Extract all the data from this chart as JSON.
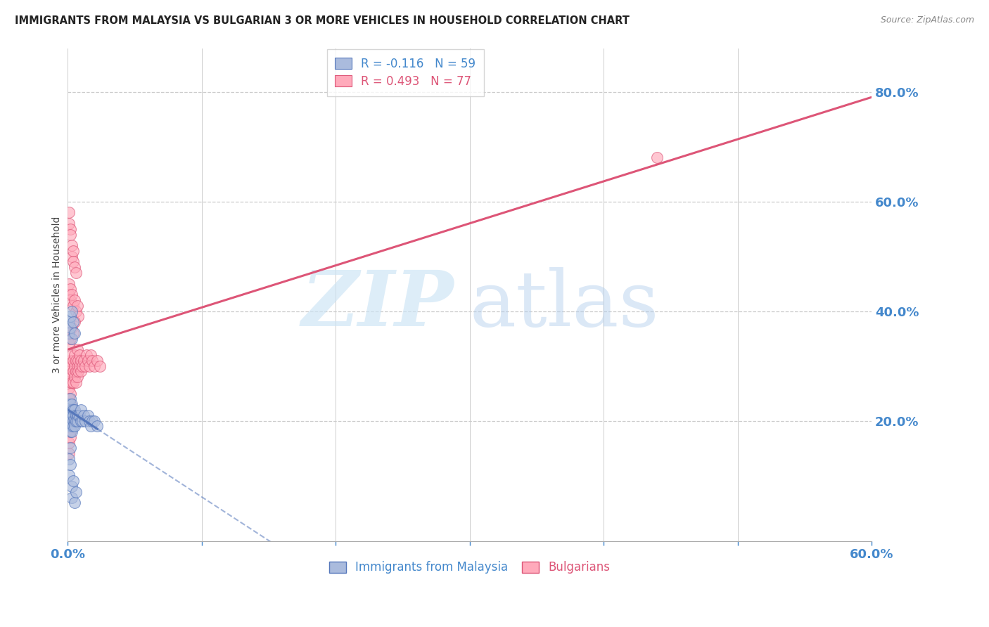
{
  "title": "IMMIGRANTS FROM MALAYSIA VS BULGARIAN 3 OR MORE VEHICLES IN HOUSEHOLD CORRELATION CHART",
  "source": "Source: ZipAtlas.com",
  "ylabel": "3 or more Vehicles in Household",
  "watermark_zip": "ZIP",
  "watermark_atlas": "atlas",
  "legend_malaysia": "Immigrants from Malaysia",
  "legend_bulgarians": "Bulgarians",
  "r_malaysia": -0.116,
  "n_malaysia": 59,
  "r_bulgarians": 0.493,
  "n_bulgarians": 77,
  "xlim": [
    0.0,
    0.6
  ],
  "ylim": [
    -0.02,
    0.88
  ],
  "x_tick_positions": [
    0.0,
    0.1,
    0.2,
    0.3,
    0.4,
    0.5,
    0.6
  ],
  "x_tick_labels": [
    "0.0%",
    "",
    "",
    "",
    "",
    "",
    "60.0%"
  ],
  "y_tick_positions": [
    0.0,
    0.2,
    0.4,
    0.6,
    0.8
  ],
  "y_tick_labels": [
    "",
    "20.0%",
    "40.0%",
    "60.0%",
    "80.0%"
  ],
  "grid_color": "#cccccc",
  "background_color": "#ffffff",
  "blue_fill": "#aabbdd",
  "blue_edge": "#5577bb",
  "pink_fill": "#ffaabb",
  "pink_edge": "#dd5577",
  "blue_line": "#5577bb",
  "pink_line": "#dd5577",
  "title_color": "#222222",
  "source_color": "#888888",
  "tick_color": "#4488cc",
  "ylabel_color": "#444444",
  "malaysia_x": [
    0.001,
    0.001,
    0.001,
    0.001,
    0.001,
    0.002,
    0.002,
    0.002,
    0.002,
    0.002,
    0.002,
    0.002,
    0.003,
    0.003,
    0.003,
    0.003,
    0.003,
    0.003,
    0.004,
    0.004,
    0.004,
    0.004,
    0.005,
    0.005,
    0.005,
    0.006,
    0.006,
    0.007,
    0.007,
    0.008,
    0.009,
    0.01,
    0.01,
    0.011,
    0.012,
    0.013,
    0.015,
    0.016,
    0.017,
    0.018,
    0.02,
    0.022,
    0.001,
    0.001,
    0.002,
    0.002,
    0.003,
    0.003,
    0.004,
    0.005,
    0.001,
    0.001,
    0.002,
    0.002,
    0.003,
    0.003,
    0.004,
    0.005,
    0.006
  ],
  "malaysia_y": [
    0.21,
    0.22,
    0.2,
    0.23,
    0.19,
    0.22,
    0.21,
    0.23,
    0.2,
    0.19,
    0.24,
    0.18,
    0.22,
    0.21,
    0.2,
    0.23,
    0.19,
    0.18,
    0.22,
    0.21,
    0.2,
    0.19,
    0.22,
    0.2,
    0.19,
    0.21,
    0.2,
    0.21,
    0.2,
    0.21,
    0.21,
    0.2,
    0.22,
    0.2,
    0.21,
    0.2,
    0.21,
    0.2,
    0.19,
    0.2,
    0.2,
    0.19,
    0.38,
    0.36,
    0.39,
    0.37,
    0.4,
    0.35,
    0.38,
    0.36,
    0.13,
    0.1,
    0.15,
    0.12,
    0.08,
    0.06,
    0.09,
    0.05,
    0.07
  ],
  "bulgarians_x": [
    0.001,
    0.001,
    0.001,
    0.002,
    0.002,
    0.002,
    0.002,
    0.003,
    0.003,
    0.003,
    0.003,
    0.004,
    0.004,
    0.004,
    0.005,
    0.005,
    0.005,
    0.006,
    0.006,
    0.006,
    0.007,
    0.007,
    0.007,
    0.008,
    0.008,
    0.009,
    0.009,
    0.01,
    0.01,
    0.011,
    0.012,
    0.013,
    0.014,
    0.015,
    0.016,
    0.017,
    0.018,
    0.02,
    0.022,
    0.024,
    0.001,
    0.001,
    0.002,
    0.002,
    0.003,
    0.003,
    0.004,
    0.004,
    0.005,
    0.006,
    0.001,
    0.001,
    0.002,
    0.002,
    0.003,
    0.004,
    0.005,
    0.006,
    0.007,
    0.008,
    0.001,
    0.001,
    0.002,
    0.003,
    0.004,
    0.005,
    0.001,
    0.001,
    0.002,
    0.003,
    0.001,
    0.002,
    0.003,
    0.001,
    0.002,
    0.44,
    0.001
  ],
  "bulgarians_y": [
    0.26,
    0.28,
    0.3,
    0.27,
    0.29,
    0.31,
    0.25,
    0.28,
    0.3,
    0.27,
    0.32,
    0.29,
    0.31,
    0.27,
    0.3,
    0.28,
    0.32,
    0.29,
    0.31,
    0.27,
    0.3,
    0.28,
    0.33,
    0.29,
    0.31,
    0.3,
    0.32,
    0.29,
    0.31,
    0.3,
    0.31,
    0.3,
    0.32,
    0.31,
    0.3,
    0.32,
    0.31,
    0.3,
    0.31,
    0.3,
    0.58,
    0.56,
    0.55,
    0.54,
    0.52,
    0.5,
    0.51,
    0.49,
    0.48,
    0.47,
    0.45,
    0.43,
    0.44,
    0.42,
    0.43,
    0.41,
    0.42,
    0.4,
    0.41,
    0.39,
    0.36,
    0.34,
    0.35,
    0.37,
    0.36,
    0.38,
    0.22,
    0.24,
    0.23,
    0.22,
    0.19,
    0.18,
    0.2,
    0.16,
    0.17,
    0.68,
    0.14
  ]
}
